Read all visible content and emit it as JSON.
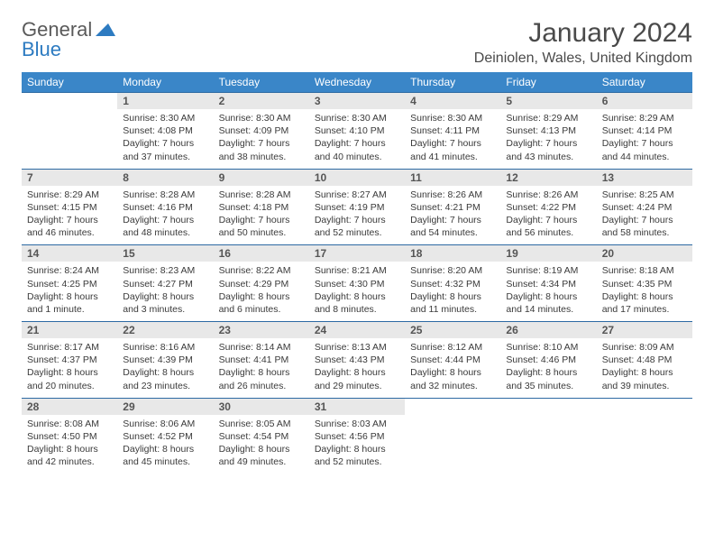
{
  "brand": {
    "text1": "General",
    "text2": "Blue"
  },
  "title": "January 2024",
  "location": "Deiniolen, Wales, United Kingdom",
  "colors": {
    "header_bg": "#3a86c8",
    "header_text": "#ffffff",
    "daynum_bg": "#e8e8e8",
    "divider": "#2d6aa3",
    "body_text": "#3a3a3a",
    "brand_blue": "#2d7bc1",
    "brand_gray": "#5a5a5a",
    "page_bg": "#ffffff"
  },
  "typography": {
    "title_fontsize": 30,
    "location_fontsize": 16,
    "header_fontsize": 12,
    "daynum_fontsize": 12,
    "detail_fontsize": 10.5
  },
  "weekdays": [
    "Sunday",
    "Monday",
    "Tuesday",
    "Wednesday",
    "Thursday",
    "Friday",
    "Saturday"
  ],
  "weeks": [
    {
      "nums": [
        "",
        "1",
        "2",
        "3",
        "4",
        "5",
        "6"
      ],
      "cells": [
        null,
        {
          "sunrise": "8:30 AM",
          "sunset": "4:08 PM",
          "daylight": "7 hours and 37 minutes."
        },
        {
          "sunrise": "8:30 AM",
          "sunset": "4:09 PM",
          "daylight": "7 hours and 38 minutes."
        },
        {
          "sunrise": "8:30 AM",
          "sunset": "4:10 PM",
          "daylight": "7 hours and 40 minutes."
        },
        {
          "sunrise": "8:30 AM",
          "sunset": "4:11 PM",
          "daylight": "7 hours and 41 minutes."
        },
        {
          "sunrise": "8:29 AM",
          "sunset": "4:13 PM",
          "daylight": "7 hours and 43 minutes."
        },
        {
          "sunrise": "8:29 AM",
          "sunset": "4:14 PM",
          "daylight": "7 hours and 44 minutes."
        }
      ]
    },
    {
      "nums": [
        "7",
        "8",
        "9",
        "10",
        "11",
        "12",
        "13"
      ],
      "cells": [
        {
          "sunrise": "8:29 AM",
          "sunset": "4:15 PM",
          "daylight": "7 hours and 46 minutes."
        },
        {
          "sunrise": "8:28 AM",
          "sunset": "4:16 PM",
          "daylight": "7 hours and 48 minutes."
        },
        {
          "sunrise": "8:28 AM",
          "sunset": "4:18 PM",
          "daylight": "7 hours and 50 minutes."
        },
        {
          "sunrise": "8:27 AM",
          "sunset": "4:19 PM",
          "daylight": "7 hours and 52 minutes."
        },
        {
          "sunrise": "8:26 AM",
          "sunset": "4:21 PM",
          "daylight": "7 hours and 54 minutes."
        },
        {
          "sunrise": "8:26 AM",
          "sunset": "4:22 PM",
          "daylight": "7 hours and 56 minutes."
        },
        {
          "sunrise": "8:25 AM",
          "sunset": "4:24 PM",
          "daylight": "7 hours and 58 minutes."
        }
      ]
    },
    {
      "nums": [
        "14",
        "15",
        "16",
        "17",
        "18",
        "19",
        "20"
      ],
      "cells": [
        {
          "sunrise": "8:24 AM",
          "sunset": "4:25 PM",
          "daylight": "8 hours and 1 minute."
        },
        {
          "sunrise": "8:23 AM",
          "sunset": "4:27 PM",
          "daylight": "8 hours and 3 minutes."
        },
        {
          "sunrise": "8:22 AM",
          "sunset": "4:29 PM",
          "daylight": "8 hours and 6 minutes."
        },
        {
          "sunrise": "8:21 AM",
          "sunset": "4:30 PM",
          "daylight": "8 hours and 8 minutes."
        },
        {
          "sunrise": "8:20 AM",
          "sunset": "4:32 PM",
          "daylight": "8 hours and 11 minutes."
        },
        {
          "sunrise": "8:19 AM",
          "sunset": "4:34 PM",
          "daylight": "8 hours and 14 minutes."
        },
        {
          "sunrise": "8:18 AM",
          "sunset": "4:35 PM",
          "daylight": "8 hours and 17 minutes."
        }
      ]
    },
    {
      "nums": [
        "21",
        "22",
        "23",
        "24",
        "25",
        "26",
        "27"
      ],
      "cells": [
        {
          "sunrise": "8:17 AM",
          "sunset": "4:37 PM",
          "daylight": "8 hours and 20 minutes."
        },
        {
          "sunrise": "8:16 AM",
          "sunset": "4:39 PM",
          "daylight": "8 hours and 23 minutes."
        },
        {
          "sunrise": "8:14 AM",
          "sunset": "4:41 PM",
          "daylight": "8 hours and 26 minutes."
        },
        {
          "sunrise": "8:13 AM",
          "sunset": "4:43 PM",
          "daylight": "8 hours and 29 minutes."
        },
        {
          "sunrise": "8:12 AM",
          "sunset": "4:44 PM",
          "daylight": "8 hours and 32 minutes."
        },
        {
          "sunrise": "8:10 AM",
          "sunset": "4:46 PM",
          "daylight": "8 hours and 35 minutes."
        },
        {
          "sunrise": "8:09 AM",
          "sunset": "4:48 PM",
          "daylight": "8 hours and 39 minutes."
        }
      ]
    },
    {
      "nums": [
        "28",
        "29",
        "30",
        "31",
        "",
        "",
        ""
      ],
      "cells": [
        {
          "sunrise": "8:08 AM",
          "sunset": "4:50 PM",
          "daylight": "8 hours and 42 minutes."
        },
        {
          "sunrise": "8:06 AM",
          "sunset": "4:52 PM",
          "daylight": "8 hours and 45 minutes."
        },
        {
          "sunrise": "8:05 AM",
          "sunset": "4:54 PM",
          "daylight": "8 hours and 49 minutes."
        },
        {
          "sunrise": "8:03 AM",
          "sunset": "4:56 PM",
          "daylight": "8 hours and 52 minutes."
        },
        null,
        null,
        null
      ]
    }
  ]
}
